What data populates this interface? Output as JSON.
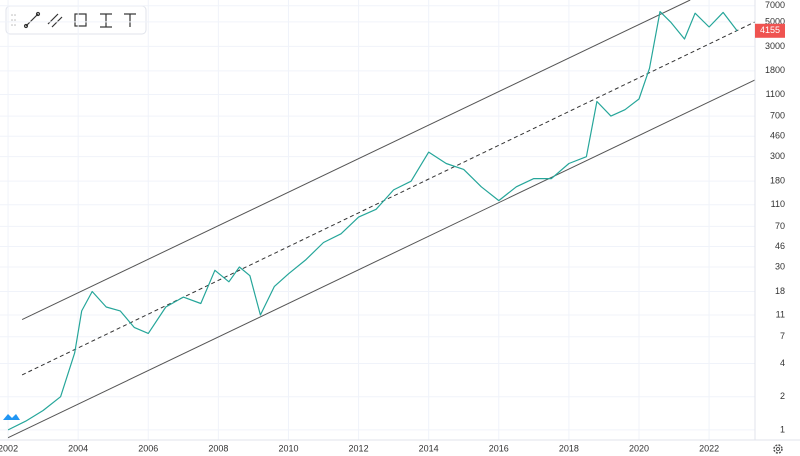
{
  "chart_data": {
    "type": "line",
    "log_scale": true,
    "grid": true,
    "x": [
      2002.0,
      2002.5,
      2003.0,
      2003.5,
      2003.9,
      2004.1,
      2004.4,
      2004.8,
      2005.2,
      2005.6,
      2006.0,
      2006.5,
      2007.0,
      2007.5,
      2007.9,
      2008.3,
      2008.6,
      2008.9,
      2009.2,
      2009.6,
      2010.0,
      2010.5,
      2011.0,
      2011.5,
      2012.0,
      2012.5,
      2013.0,
      2013.5,
      2014.0,
      2014.5,
      2015.0,
      2015.5,
      2016.0,
      2016.5,
      2017.0,
      2017.5,
      2018.0,
      2018.5,
      2018.8,
      2019.2,
      2019.6,
      2020.0,
      2020.3,
      2020.6,
      2020.9,
      2021.3,
      2021.6,
      2022.0,
      2022.4,
      2022.8
    ],
    "series": [
      {
        "color": "#26a69a",
        "values": [
          1,
          1.2,
          1.5,
          2,
          5,
          12,
          18,
          13,
          12,
          8.5,
          7.5,
          13,
          16,
          14,
          28,
          22,
          30,
          25,
          11,
          20,
          26,
          35,
          50,
          60,
          85,
          100,
          150,
          180,
          330,
          260,
          230,
          160,
          120,
          160,
          190,
          190,
          260,
          300,
          950,
          700,
          800,
          1000,
          1900,
          6200,
          5000,
          3500,
          6000,
          4500,
          6100,
          4155
        ]
      }
    ],
    "trend_lines": [
      {
        "x": [
          2002.4,
          2021.46
        ],
        "values": [
          10,
          7900
        ],
        "color": "#555555",
        "dashed": false
      },
      {
        "x": [
          2002.4,
          2023.31
        ],
        "values": [
          3.15,
          5000
        ],
        "color": "#333333",
        "dashed": true
      },
      {
        "x": [
          2002.0,
          2023.31
        ],
        "values": [
          0.85,
          1490
        ],
        "color": "#555555",
        "dashed": false
      }
    ],
    "last_price_color": "#ef5350",
    "xlim": [
      2001.77,
      2023.31
    ],
    "xticks": [
      2002,
      2004,
      2006,
      2008,
      2010,
      2012,
      2014,
      2016,
      2018,
      2020,
      2022
    ],
    "ylim": [
      0.81,
      7900
    ],
    "yticks": [
      7000,
      5000,
      3000,
      1800,
      1100,
      700,
      460,
      300,
      180,
      110,
      70,
      46,
      30,
      18,
      11,
      7,
      4,
      2,
      1
    ]
  }
}
